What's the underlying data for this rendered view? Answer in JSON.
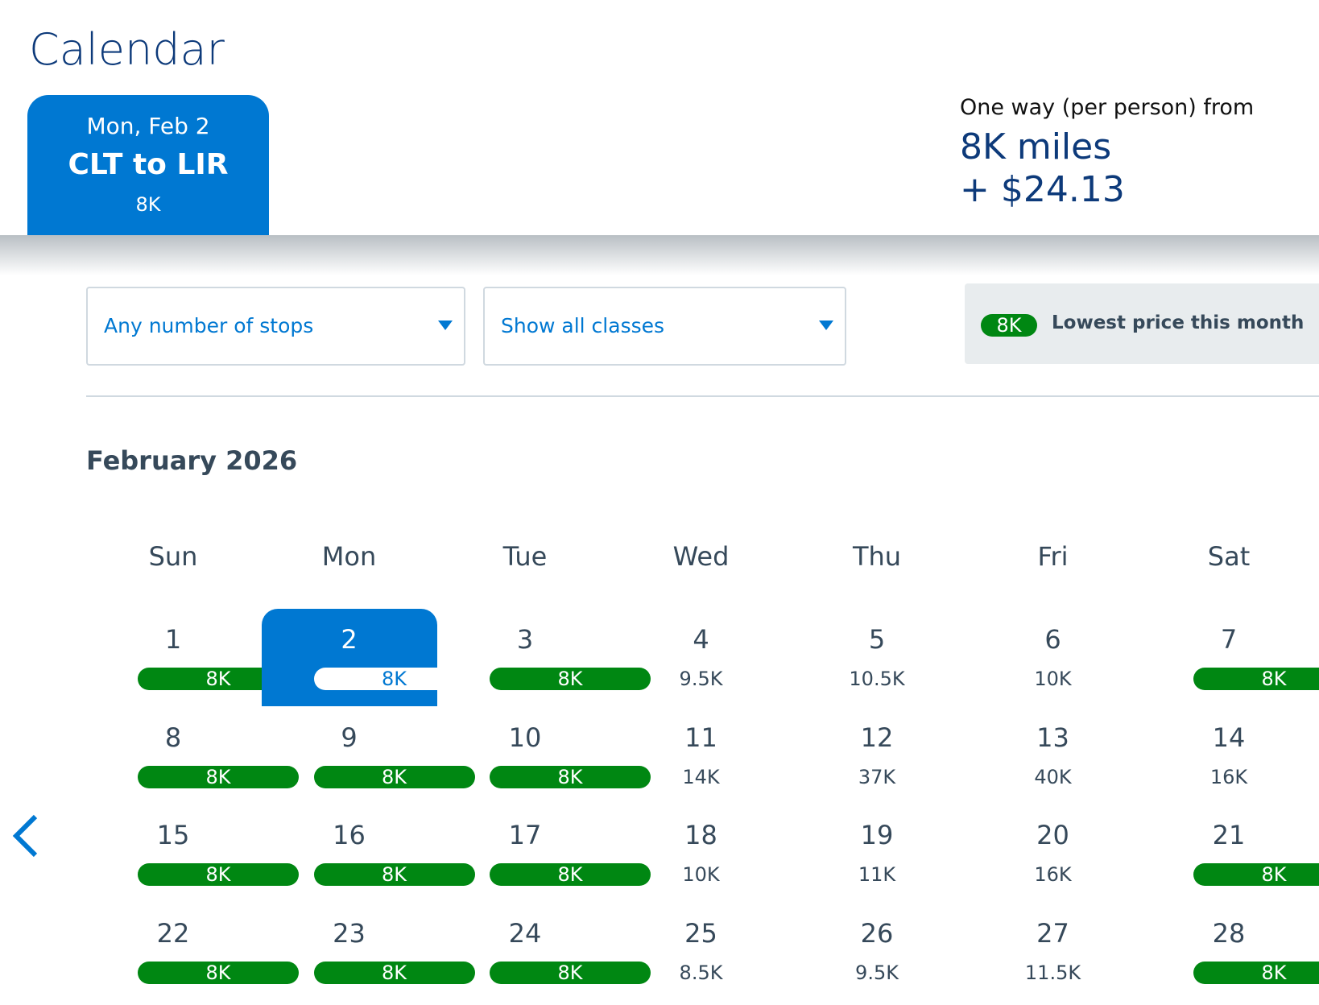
{
  "header": {
    "title": "Calendar"
  },
  "tab": {
    "date": "Mon, Feb 2",
    "route": "CLT to LIR",
    "price": "8K"
  },
  "summary": {
    "label": "One way (per person) from",
    "miles": "8K miles",
    "fee": "+ $24.13"
  },
  "filters": {
    "stops": "Any number of stops",
    "classes": "Show all classes"
  },
  "legend": {
    "badge": "8K",
    "text": "Lowest price this month"
  },
  "calendar": {
    "month": "February 2026",
    "weekdays": [
      "Sun",
      "Mon",
      "Tue",
      "Wed",
      "Thu",
      "Fri",
      "Sat"
    ],
    "selected_index": 1,
    "days": [
      {
        "day": 1,
        "price": "8K"
      },
      {
        "day": 2,
        "price": "8K"
      },
      {
        "day": 3,
        "price": "8K"
      },
      {
        "day": 4,
        "price": "9.5K"
      },
      {
        "day": 5,
        "price": "10.5K"
      },
      {
        "day": 6,
        "price": "10K"
      },
      {
        "day": 7,
        "price": "8K"
      },
      {
        "day": 8,
        "price": "8K"
      },
      {
        "day": 9,
        "price": "8K"
      },
      {
        "day": 10,
        "price": "8K"
      },
      {
        "day": 11,
        "price": "14K"
      },
      {
        "day": 12,
        "price": "37K"
      },
      {
        "day": 13,
        "price": "40K"
      },
      {
        "day": 14,
        "price": "16K"
      },
      {
        "day": 15,
        "price": "8K"
      },
      {
        "day": 16,
        "price": "8K"
      },
      {
        "day": 17,
        "price": "8K"
      },
      {
        "day": 18,
        "price": "10K"
      },
      {
        "day": 19,
        "price": "11K"
      },
      {
        "day": 20,
        "price": "16K"
      },
      {
        "day": 21,
        "price": "8K"
      },
      {
        "day": 22,
        "price": "8K"
      },
      {
        "day": 23,
        "price": "8K"
      },
      {
        "day": 24,
        "price": "8K"
      },
      {
        "day": 25,
        "price": "8.5K"
      },
      {
        "day": 26,
        "price": "9.5K"
      },
      {
        "day": 27,
        "price": "11.5K"
      },
      {
        "day": 28,
        "price": "8K"
      }
    ]
  }
}
